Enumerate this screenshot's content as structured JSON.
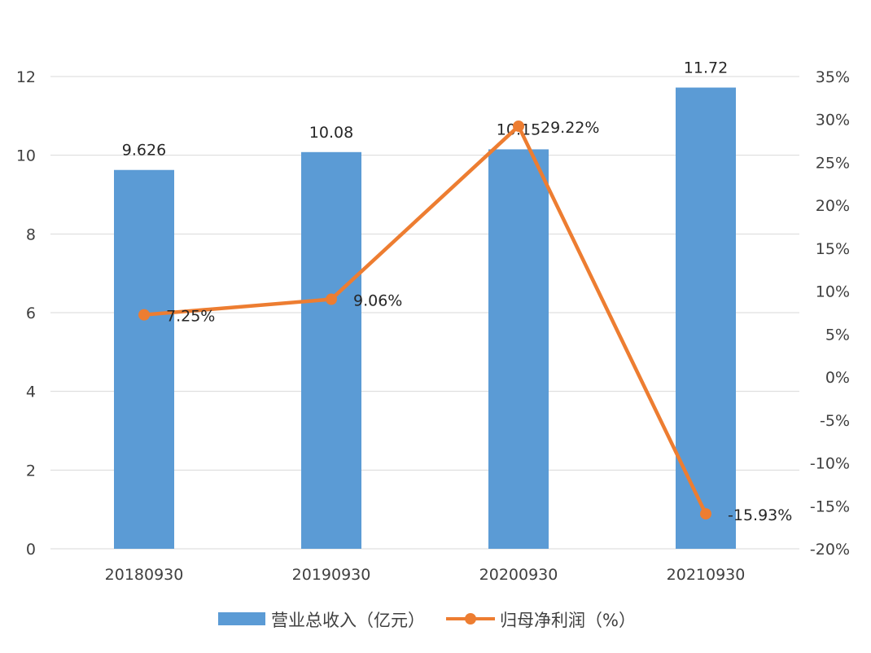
{
  "chart_data": {
    "type": "bar+line",
    "categories": [
      "20180930",
      "20190930",
      "20200930",
      "20210930"
    ],
    "series": [
      {
        "name": "营业总收入（亿元）",
        "type": "bar",
        "axis": "left",
        "color": "#5b9bd5",
        "values": [
          9.626,
          10.08,
          10.15,
          11.72
        ],
        "labels": [
          "9.626",
          "10.08",
          "10.15",
          "11.72"
        ]
      },
      {
        "name": "归母净利润（%）",
        "type": "line",
        "axis": "right",
        "color": "#ed7d31",
        "values": [
          7.25,
          9.06,
          29.22,
          -15.93
        ],
        "labels": [
          "7.25%",
          "9.06%",
          "29.22%",
          "-15.93%"
        ]
      }
    ],
    "left_axis": {
      "min": 0,
      "max": 12,
      "step": 2,
      "ticks": [
        "0",
        "2",
        "4",
        "6",
        "8",
        "10",
        "12"
      ]
    },
    "right_axis": {
      "min": -20,
      "max": 35,
      "step": 5,
      "ticks": [
        "-20%",
        "-15%",
        "-10%",
        "-5%",
        "0%",
        "5%",
        "10%",
        "15%",
        "20%",
        "25%",
        "30%",
        "35%"
      ]
    },
    "grid": true,
    "legend": "bottom-center"
  }
}
